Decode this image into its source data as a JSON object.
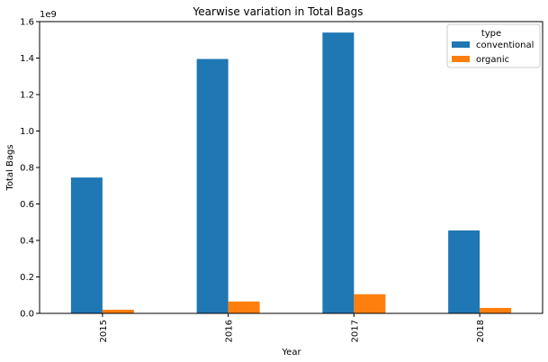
{
  "chart_data": {
    "type": "bar",
    "title": "Yearwise variation in Total Bags",
    "xlabel": "Year",
    "ylabel": "Total Bags",
    "y_multiplier_label": "1e9",
    "categories": [
      "2015",
      "2016",
      "2017",
      "2018"
    ],
    "series": [
      {
        "name": "conventional",
        "color": "#1f77b4",
        "values": [
          0.745,
          1.395,
          1.54,
          0.455
        ]
      },
      {
        "name": "organic",
        "color": "#ff7f0e",
        "values": [
          0.02,
          0.065,
          0.105,
          0.03
        ]
      }
    ],
    "ylim": [
      0,
      1.6
    ],
    "yticks": [
      0.0,
      0.2,
      0.4,
      0.6,
      0.8,
      1.0,
      1.2,
      1.4,
      1.6
    ],
    "ytick_labels": [
      "0.0",
      "0.2",
      "0.4",
      "0.6",
      "0.8",
      "1.0",
      "1.2",
      "1.4",
      "1.6"
    ],
    "legend_title": "type",
    "legend_position": "top-right",
    "grid": false
  }
}
